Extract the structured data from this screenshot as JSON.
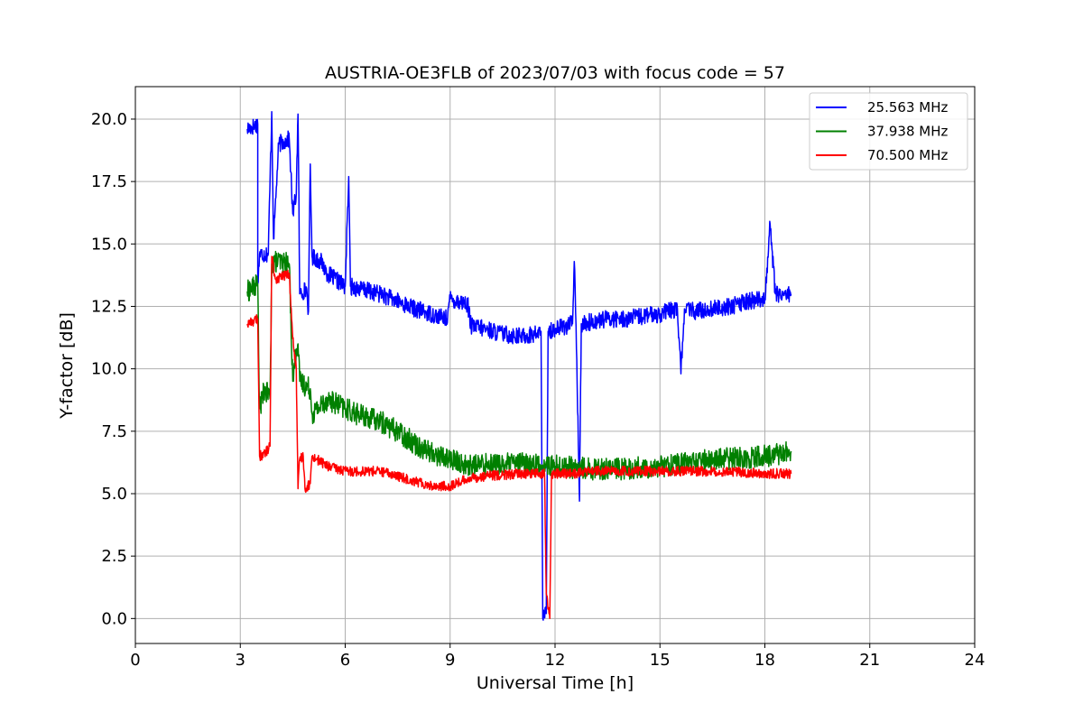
{
  "chart_data": {
    "type": "line",
    "title": "AUSTRIA-OE3FLB of 2023/07/03 with focus code = 57",
    "xlabel": "Universal Time [h]",
    "ylabel": "Y-factor [dB]",
    "xlim": [
      0,
      24
    ],
    "ylim": [
      -1.0,
      21.3
    ],
    "xticks": [
      0,
      3,
      6,
      9,
      12,
      15,
      18,
      21,
      24
    ],
    "yticks": [
      0.0,
      2.5,
      5.0,
      7.5,
      10.0,
      12.5,
      15.0,
      17.5,
      20.0
    ],
    "xtick_labels": [
      "0",
      "3",
      "6",
      "9",
      "12",
      "15",
      "18",
      "21",
      "24"
    ],
    "ytick_labels": [
      "0.0",
      "2.5",
      "5.0",
      "7.5",
      "10.0",
      "12.5",
      "15.0",
      "17.5",
      "20.0"
    ],
    "grid": true,
    "legend_position": "top-right",
    "series": [
      {
        "name": "25.563 MHz",
        "color": "#0000ff",
        "noise": 0.35,
        "points": [
          [
            3.2,
            19.6
          ],
          [
            3.5,
            19.8
          ],
          [
            3.5,
            13.4
          ],
          [
            3.55,
            14.6
          ],
          [
            3.8,
            14.6
          ],
          [
            3.9,
            20.3
          ],
          [
            3.95,
            15.2
          ],
          [
            4.1,
            19.0
          ],
          [
            4.4,
            19.2
          ],
          [
            4.5,
            16.2
          ],
          [
            4.6,
            17.0
          ],
          [
            4.65,
            20.2
          ],
          [
            4.7,
            13.0
          ],
          [
            4.9,
            13.2
          ],
          [
            4.95,
            12.3
          ],
          [
            5.0,
            18.2
          ],
          [
            5.05,
            14.5
          ],
          [
            5.3,
            14.3
          ],
          [
            5.5,
            13.8
          ],
          [
            6.0,
            13.3
          ],
          [
            6.1,
            17.7
          ],
          [
            6.15,
            13.3
          ],
          [
            7.0,
            13.0
          ],
          [
            8.0,
            12.4
          ],
          [
            8.9,
            12.0
          ],
          [
            9.0,
            12.8
          ],
          [
            9.5,
            12.6
          ],
          [
            9.6,
            11.7
          ],
          [
            10.0,
            11.6
          ],
          [
            10.5,
            11.4
          ],
          [
            11.0,
            11.3
          ],
          [
            11.5,
            11.4
          ],
          [
            11.6,
            11.5
          ],
          [
            11.65,
            0.0
          ],
          [
            11.75,
            0.2
          ],
          [
            11.8,
            11.5
          ],
          [
            12.0,
            11.6
          ],
          [
            12.5,
            11.8
          ],
          [
            12.55,
            14.3
          ],
          [
            12.6,
            11.7
          ],
          [
            12.7,
            4.7
          ],
          [
            12.75,
            11.8
          ],
          [
            13.5,
            12.0
          ],
          [
            14.0,
            12.0
          ],
          [
            15.0,
            12.2
          ],
          [
            15.5,
            12.4
          ],
          [
            15.6,
            9.8
          ],
          [
            15.7,
            12.4
          ],
          [
            16.0,
            12.3
          ],
          [
            17.0,
            12.5
          ],
          [
            17.5,
            12.7
          ],
          [
            18.0,
            12.8
          ],
          [
            18.15,
            15.8
          ],
          [
            18.3,
            13.0
          ],
          [
            18.75,
            13.0
          ]
        ]
      },
      {
        "name": "37.938 MHz",
        "color": "#008000",
        "noise": 0.45,
        "points": [
          [
            3.2,
            13.1
          ],
          [
            3.5,
            13.4
          ],
          [
            3.55,
            8.4
          ],
          [
            3.7,
            9.2
          ],
          [
            3.85,
            8.8
          ],
          [
            3.9,
            14.2
          ],
          [
            4.0,
            14.3
          ],
          [
            4.4,
            14.2
          ],
          [
            4.5,
            9.5
          ],
          [
            4.6,
            10.8
          ],
          [
            4.65,
            11.0
          ],
          [
            4.7,
            9.5
          ],
          [
            5.0,
            9.2
          ],
          [
            5.05,
            8.2
          ],
          [
            5.5,
            8.8
          ],
          [
            6.0,
            8.4
          ],
          [
            6.5,
            8.1
          ],
          [
            7.0,
            7.9
          ],
          [
            7.5,
            7.5
          ],
          [
            8.0,
            7.0
          ],
          [
            8.5,
            6.6
          ],
          [
            9.0,
            6.4
          ],
          [
            9.5,
            6.1
          ],
          [
            10.0,
            6.2
          ],
          [
            11.0,
            6.2
          ],
          [
            12.0,
            6.1
          ],
          [
            13.0,
            6.0
          ],
          [
            14.0,
            6.0
          ],
          [
            15.0,
            6.1
          ],
          [
            16.0,
            6.3
          ],
          [
            17.0,
            6.4
          ],
          [
            18.0,
            6.5
          ],
          [
            18.75,
            6.7
          ]
        ]
      },
      {
        "name": "70.500 MHz",
        "color": "#ff0000",
        "noise": 0.2,
        "points": [
          [
            3.2,
            11.8
          ],
          [
            3.5,
            12.0
          ],
          [
            3.55,
            6.5
          ],
          [
            3.7,
            6.6
          ],
          [
            3.85,
            6.9
          ],
          [
            3.9,
            14.5
          ],
          [
            4.0,
            13.6
          ],
          [
            4.4,
            13.8
          ],
          [
            4.5,
            11.2
          ],
          [
            4.6,
            10.0
          ],
          [
            4.65,
            5.2
          ],
          [
            4.7,
            6.4
          ],
          [
            4.8,
            6.5
          ],
          [
            4.85,
            5.2
          ],
          [
            5.0,
            5.4
          ],
          [
            5.05,
            6.5
          ],
          [
            5.5,
            6.1
          ],
          [
            6.0,
            5.9
          ],
          [
            7.0,
            5.9
          ],
          [
            8.0,
            5.5
          ],
          [
            8.5,
            5.3
          ],
          [
            9.0,
            5.3
          ],
          [
            9.5,
            5.6
          ],
          [
            10.0,
            5.7
          ],
          [
            11.0,
            5.8
          ],
          [
            11.7,
            5.8
          ],
          [
            11.75,
            1.0
          ],
          [
            11.85,
            0.0
          ],
          [
            11.9,
            5.8
          ],
          [
            12.5,
            5.8
          ],
          [
            13.0,
            5.9
          ],
          [
            14.0,
            5.9
          ],
          [
            15.0,
            5.9
          ],
          [
            16.0,
            5.9
          ],
          [
            17.0,
            5.9
          ],
          [
            18.0,
            5.8
          ],
          [
            18.75,
            5.8
          ]
        ]
      }
    ]
  }
}
